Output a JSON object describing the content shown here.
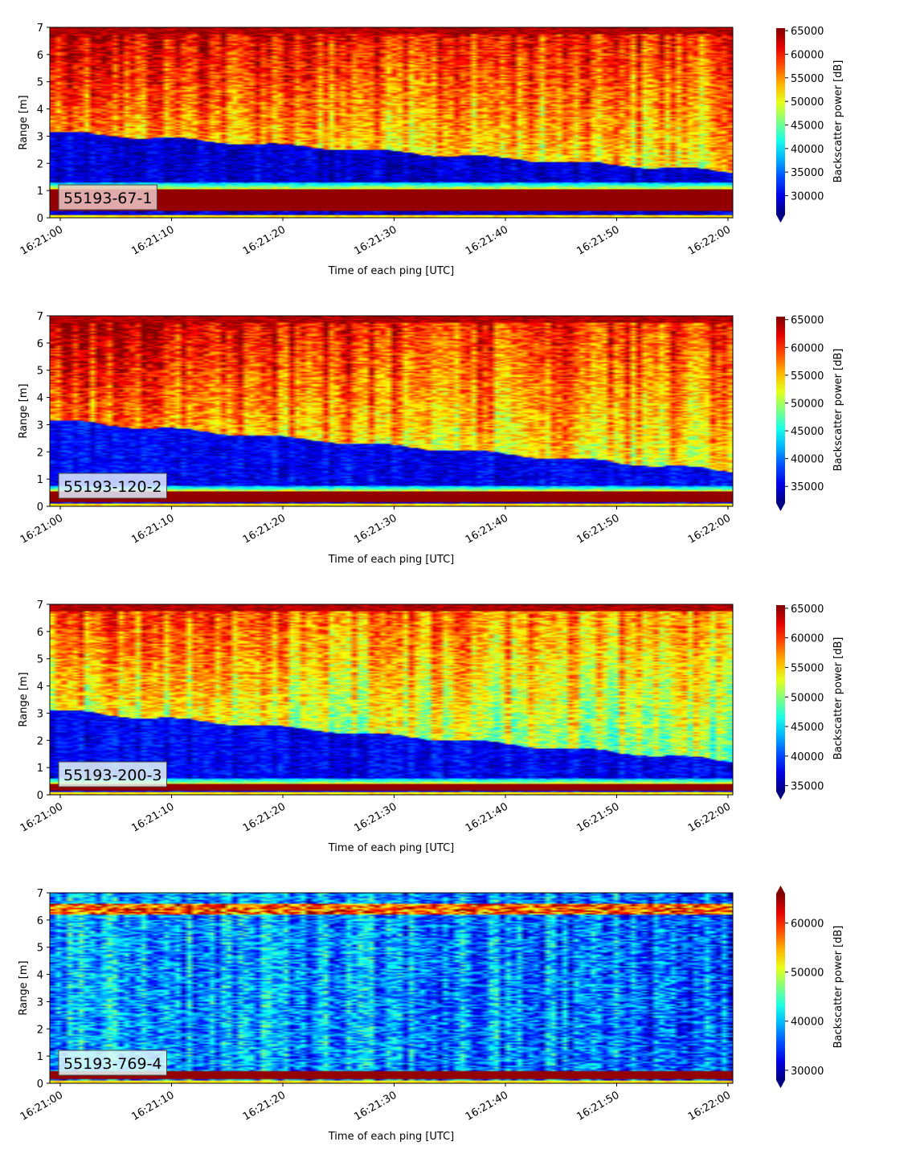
{
  "chart_data": [
    {
      "type": "heatmap",
      "label": "55193-67-1",
      "x": {
        "label": "Time of each ping [UTC]",
        "ticks": [
          "16:21:00",
          "16:21:10",
          "16:21:20",
          "16:21:30",
          "16:21:40",
          "16:21:50",
          "16:22:00"
        ],
        "range": [
          "16:21:00",
          "16:22:00"
        ]
      },
      "y": {
        "label": "Range [m]",
        "ticks": [
          "0",
          "1",
          "2",
          "3",
          "4",
          "5",
          "6",
          "7"
        ],
        "range": [
          0,
          7
        ]
      },
      "colorbar": {
        "label": "Backscatter power [dB]",
        "ticks": [
          "30000",
          "35000",
          "40000",
          "45000",
          "50000",
          "55000",
          "60000",
          "65000"
        ],
        "range": [
          26000,
          65536
        ],
        "extend": "min",
        "colormap": "jet"
      },
      "profile": {
        "surface_band_m": [
          0.25,
          1.05
        ],
        "dark_layer_top_m": {
          "start": 3.15,
          "end": 1.7
        },
        "dark_layer_bottom_m": 1.3,
        "upper_mean_fraction": {
          "start": 0.72,
          "end": 0.62
        },
        "lower_mean_fraction": 0.08
      }
    },
    {
      "type": "heatmap",
      "label": "55193-120-2",
      "x": {
        "label": "Time of each ping [UTC]",
        "ticks": [
          "16:21:00",
          "16:21:10",
          "16:21:20",
          "16:21:30",
          "16:21:40",
          "16:21:50",
          "16:22:00"
        ],
        "range": [
          "16:21:00",
          "16:22:00"
        ]
      },
      "y": {
        "label": "Range [m]",
        "ticks": [
          "0",
          "1",
          "2",
          "3",
          "4",
          "5",
          "6",
          "7"
        ],
        "range": [
          0,
          7
        ]
      },
      "colorbar": {
        "label": "Backscatter power [dB]",
        "ticks": [
          "35000",
          "40000",
          "45000",
          "50000",
          "55000",
          "60000",
          "65000"
        ],
        "range": [
          32000,
          65536
        ],
        "extend": "min",
        "colormap": "jet"
      },
      "profile": {
        "surface_band_m": [
          0.15,
          0.55
        ],
        "dark_layer_top_m": {
          "start": 3.15,
          "end": 1.3
        },
        "dark_layer_bottom_m": 0.75,
        "upper_mean_fraction": {
          "start": 0.74,
          "end": 0.6
        },
        "lower_mean_fraction": 0.12
      }
    },
    {
      "type": "heatmap",
      "label": "55193-200-3",
      "x": {
        "label": "Time of each ping [UTC]",
        "ticks": [
          "16:21:00",
          "16:21:10",
          "16:21:20",
          "16:21:30",
          "16:21:40",
          "16:21:50",
          "16:22:00"
        ],
        "range": [
          "16:21:00",
          "16:22:00"
        ]
      },
      "y": {
        "label": "Range [m]",
        "ticks": [
          "0",
          "1",
          "2",
          "3",
          "4",
          "5",
          "6",
          "7"
        ],
        "range": [
          0,
          7
        ]
      },
      "colorbar": {
        "label": "Backscatter power [dB]",
        "ticks": [
          "35000",
          "40000",
          "45000",
          "50000",
          "55000",
          "60000",
          "65000"
        ],
        "range": [
          34000,
          65536
        ],
        "extend": "min",
        "colormap": "jet"
      },
      "profile": {
        "surface_band_m": [
          0.15,
          0.4
        ],
        "dark_layer_top_m": {
          "start": 3.1,
          "end": 1.25
        },
        "dark_layer_bottom_m": 0.6,
        "upper_mean_fraction": {
          "start": 0.62,
          "end": 0.5
        },
        "lower_mean_fraction": 0.12
      }
    },
    {
      "type": "heatmap",
      "label": "55193-769-4",
      "x": {
        "label": "Time of each ping [UTC]",
        "ticks": [
          "16:21:00",
          "16:21:10",
          "16:21:20",
          "16:21:30",
          "16:21:40",
          "16:21:50",
          "16:22:00"
        ],
        "range": [
          "16:21:00",
          "16:22:00"
        ]
      },
      "y": {
        "label": "Range [m]",
        "ticks": [
          "0",
          "1",
          "2",
          "3",
          "4",
          "5",
          "6",
          "7"
        ],
        "range": [
          0,
          7
        ]
      },
      "colorbar": {
        "label": "Backscatter power [dB]",
        "ticks": [
          "30000",
          "40000",
          "50000",
          "60000"
        ],
        "range": [
          28000,
          66000
        ],
        "extend": "both",
        "colormap": "jet"
      },
      "profile": {
        "surface_band_m": [
          0.15,
          0.45
        ],
        "dark_layer_top_m": {
          "start": 0,
          "end": 0
        },
        "dark_layer_bottom_m": 0,
        "upper_mean_fraction": {
          "start": 0.3,
          "end": 0.22
        },
        "lower_mean_fraction": 0.25,
        "top_streak_m": [
          6.2,
          6.6
        ]
      }
    }
  ]
}
